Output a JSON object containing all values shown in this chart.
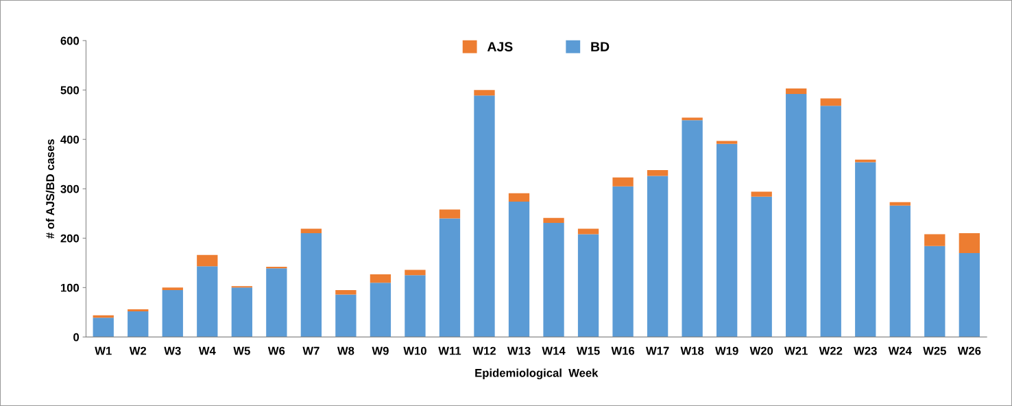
{
  "chart_data": {
    "type": "bar",
    "stacked": true,
    "xlabel": "Epidemiological  Week",
    "ylabel": "# of AJS/BD cases",
    "categories": [
      "W1",
      "W2",
      "W3",
      "W4",
      "W5",
      "W6",
      "W7",
      "W8",
      "W9",
      "W10",
      "W11",
      "W12",
      "W13",
      "W14",
      "W15",
      "W16",
      "W17",
      "W18",
      "W19",
      "W20",
      "W21",
      "W22",
      "W23",
      "W24",
      "W25",
      "W26"
    ],
    "series": [
      {
        "name": "BD",
        "color": "#5b9bd5",
        "values": [
          39,
          52,
          95,
          143,
          100,
          139,
          210,
          86,
          110,
          125,
          240,
          489,
          274,
          231,
          208,
          305,
          326,
          439,
          391,
          284,
          492,
          468,
          354,
          266,
          184,
          170
        ]
      },
      {
        "name": "AJS",
        "color": "#ed7d31",
        "values": [
          5,
          4,
          5,
          23,
          3,
          3,
          9,
          9,
          17,
          11,
          18,
          11,
          17,
          10,
          11,
          18,
          12,
          5,
          6,
          10,
          11,
          15,
          5,
          7,
          24,
          40
        ]
      }
    ],
    "ylim": [
      0,
      600
    ],
    "yticks": [
      0,
      100,
      200,
      300,
      400,
      500,
      600
    ],
    "grid": false,
    "legend": "top"
  }
}
